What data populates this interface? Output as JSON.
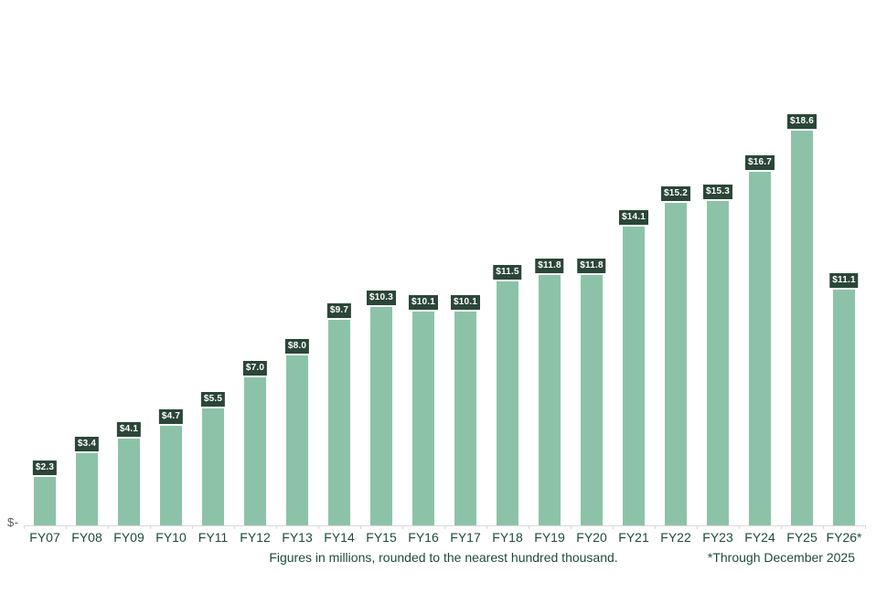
{
  "chart_data": {
    "type": "bar",
    "categories": [
      "FY07",
      "FY08",
      "FY09",
      "FY10",
      "FY11",
      "FY12",
      "FY13",
      "FY14",
      "FY15",
      "FY16",
      "FY17",
      "FY18",
      "FY19",
      "FY20",
      "FY21",
      "FY22",
      "FY23",
      "FY24",
      "FY25",
      "FY26*"
    ],
    "values": [
      2.3,
      3.4,
      4.1,
      4.7,
      5.5,
      7.0,
      8.0,
      9.7,
      10.3,
      10.1,
      10.1,
      11.5,
      11.8,
      11.8,
      14.1,
      15.2,
      15.3,
      16.7,
      18.6,
      11.1
    ],
    "data_labels": [
      "$2.3",
      "$3.4",
      "$4.1",
      "$4.7",
      "$5.5",
      "$7.0",
      "$8.0",
      "$9.7",
      "$10.3",
      "$10.1",
      "$10.1",
      "$11.5",
      "$11.8",
      "$11.8",
      "$14.1",
      "$15.2",
      "$15.3",
      "$16.7",
      "$18.6",
      "$11.1"
    ],
    "title": "",
    "xlabel": "",
    "ylabel": "",
    "y_axis_zero_label": "$-",
    "ylim": [
      0,
      20
    ],
    "grid": false,
    "legend": false,
    "colors": {
      "bar": "#8cc3a8",
      "data_label_bg": "#2b4639",
      "data_label_text": "#ffffff",
      "axis_text": "#1e4b3a",
      "axis_zero_text": "#595959",
      "axis_line": "#d9d9d9"
    }
  },
  "footnotes": {
    "left": "Figures in millions, rounded to the nearest hundred thousand.",
    "right": "*Through December 2025"
  }
}
